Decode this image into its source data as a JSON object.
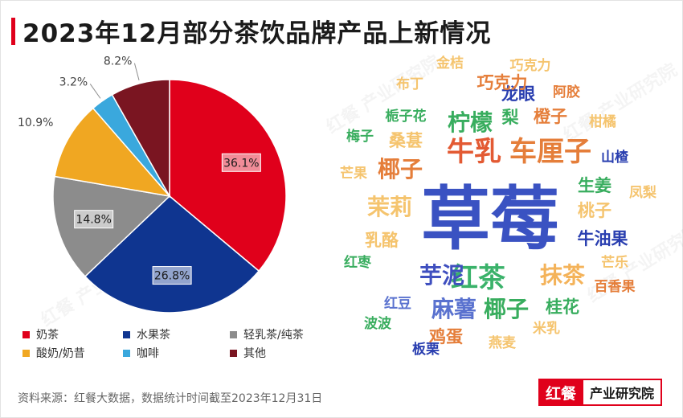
{
  "title": "2023年12月部分茶饮品牌产品上新情况",
  "source": "资料来源：红餐大数据，数据统计时间截至2023年12月31日",
  "brand": {
    "logo": "红餐",
    "name": "产业研究院"
  },
  "watermark": "红餐 产业研究院",
  "chart_data": [
    {
      "type": "pie",
      "title": "",
      "categories": [
        "奶茶",
        "水果茶",
        "轻乳茶/纯茶",
        "酸奶/奶昔",
        "咖啡",
        "其他"
      ],
      "values": [
        36.1,
        26.8,
        14.8,
        10.9,
        3.2,
        8.2
      ],
      "labels": [
        "36.1%",
        "26.8%",
        "14.8%",
        "10.9%",
        "3.2%",
        "8.2%"
      ],
      "colors": [
        "#e0001b",
        "#0f3590",
        "#8c8c8c",
        "#f0a722",
        "#3aa8dd",
        "#7a1521"
      ],
      "legend_position": "bottom"
    },
    {
      "type": "wordcloud",
      "words": [
        {
          "text": "草莓",
          "rank": 1,
          "color": "#3a52c2"
        },
        {
          "text": "牛乳",
          "rank": 2,
          "color": "#e35a33"
        },
        {
          "text": "车厘子",
          "rank": 2,
          "color": "#e57e3a"
        },
        {
          "text": "红茶",
          "rank": 2,
          "color": "#3ab26a"
        },
        {
          "text": "椰子",
          "rank": 3,
          "color": "#e57e3a"
        },
        {
          "text": "柠檬",
          "rank": 3,
          "color": "#38ad5e"
        },
        {
          "text": "芋泥",
          "rank": 3,
          "color": "#3f4fbf"
        },
        {
          "text": "抹茶",
          "rank": 3,
          "color": "#f4b35a"
        },
        {
          "text": "麻薯",
          "rank": 3,
          "color": "#5a72cf"
        },
        {
          "text": "椰子",
          "rank": 3,
          "color": "#38ad5e"
        },
        {
          "text": "茉莉",
          "rank": 3,
          "color": "#f5c46e"
        },
        {
          "text": "牛油果",
          "rank": 4,
          "color": "#2a3fb0"
        },
        {
          "text": "生姜",
          "rank": 4,
          "color": "#38ad5e"
        },
        {
          "text": "桃子",
          "rank": 4,
          "color": "#f5c46e"
        },
        {
          "text": "鸡蛋",
          "rank": 4,
          "color": "#e57e3a"
        },
        {
          "text": "桑葚",
          "rank": 4,
          "color": "#f5c46e"
        },
        {
          "text": "龙眼",
          "rank": 4,
          "color": "#2a3fb0"
        },
        {
          "text": "橙子",
          "rank": 4,
          "color": "#e57e3a"
        },
        {
          "text": "巧克力",
          "rank": 4,
          "color": "#e57e3a"
        },
        {
          "text": "乳酪",
          "rank": 4,
          "color": "#f5c46e"
        },
        {
          "text": "梨",
          "rank": 4,
          "color": "#38ad5e"
        },
        {
          "text": "桂花",
          "rank": 4,
          "color": "#38ad5e"
        },
        {
          "text": "栀子花",
          "rank": 5,
          "color": "#38ad5e"
        },
        {
          "text": "山楂",
          "rank": 5,
          "color": "#2a3fb0"
        },
        {
          "text": "阿胶",
          "rank": 5,
          "color": "#e57e3a"
        },
        {
          "text": "柑橘",
          "rank": 5,
          "color": "#f5c46e"
        },
        {
          "text": "梅子",
          "rank": 5,
          "color": "#38ad5e"
        },
        {
          "text": "凤梨",
          "rank": 5,
          "color": "#f5c46e"
        },
        {
          "text": "百香果",
          "rank": 5,
          "color": "#e57e3a"
        },
        {
          "text": "芒乐",
          "rank": 5,
          "color": "#f5c46e"
        },
        {
          "text": "红枣",
          "rank": 5,
          "color": "#38ad5e"
        },
        {
          "text": "红豆",
          "rank": 5,
          "color": "#5a72cf"
        },
        {
          "text": "波波",
          "rank": 5,
          "color": "#38ad5e"
        },
        {
          "text": "板栗",
          "rank": 5,
          "color": "#2a3fb0"
        },
        {
          "text": "燕麦",
          "rank": 5,
          "color": "#f5c46e"
        },
        {
          "text": "米乳",
          "rank": 5,
          "color": "#f5c46e"
        },
        {
          "text": "芒果",
          "rank": 5,
          "color": "#f5c46e"
        },
        {
          "text": "布丁",
          "rank": 5,
          "color": "#f5c46e"
        },
        {
          "text": "金桔",
          "rank": 5,
          "color": "#f5c46e"
        },
        {
          "text": "巧克力",
          "rank": 5,
          "color": "#f5c46e"
        }
      ]
    }
  ]
}
